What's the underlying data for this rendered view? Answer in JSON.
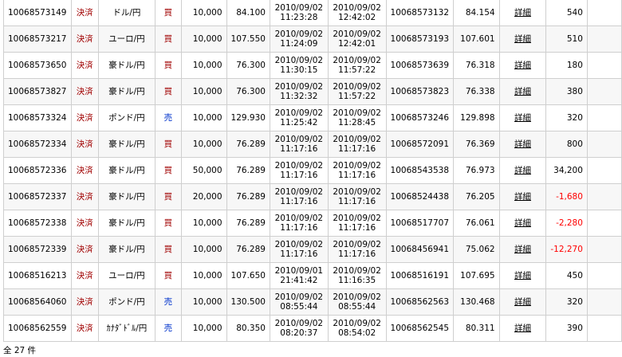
{
  "colors": {
    "settle": "#a00000",
    "buy": "#a00000",
    "sell": "#0033cc",
    "negative": "#ff0000"
  },
  "rows": [
    [
      "10068573149",
      "決済",
      "ドル/円",
      "買",
      "10,000",
      "84.100",
      "2010/09/02",
      "11:23:28",
      "2010/09/02",
      "12:42:02",
      "10068573132",
      "84.154",
      "詳細",
      "540"
    ],
    [
      "10068573217",
      "決済",
      "ユーロ/円",
      "買",
      "10,000",
      "107.550",
      "2010/09/02",
      "11:24:09",
      "2010/09/02",
      "12:42:01",
      "10068573193",
      "107.601",
      "詳細",
      "510"
    ],
    [
      "10068573650",
      "決済",
      "豪ドル/円",
      "買",
      "10,000",
      "76.300",
      "2010/09/02",
      "11:30:15",
      "2010/09/02",
      "11:57:22",
      "10068573639",
      "76.318",
      "詳細",
      "180"
    ],
    [
      "10068573827",
      "決済",
      "豪ドル/円",
      "買",
      "10,000",
      "76.300",
      "2010/09/02",
      "11:32:32",
      "2010/09/02",
      "11:57:22",
      "10068573823",
      "76.338",
      "詳細",
      "380"
    ],
    [
      "10068573324",
      "決済",
      "ポンド/円",
      "売",
      "10,000",
      "129.930",
      "2010/09/02",
      "11:25:42",
      "2010/09/02",
      "11:28:45",
      "10068573246",
      "129.898",
      "詳細",
      "320"
    ],
    [
      "10068572334",
      "決済",
      "豪ドル/円",
      "買",
      "10,000",
      "76.289",
      "2010/09/02",
      "11:17:16",
      "2010/09/02",
      "11:17:16",
      "10068572091",
      "76.369",
      "詳細",
      "800"
    ],
    [
      "10068572336",
      "決済",
      "豪ドル/円",
      "買",
      "50,000",
      "76.289",
      "2010/09/02",
      "11:17:16",
      "2010/09/02",
      "11:17:16",
      "10068543538",
      "76.973",
      "詳細",
      "34,200"
    ],
    [
      "10068572337",
      "決済",
      "豪ドル/円",
      "買",
      "20,000",
      "76.289",
      "2010/09/02",
      "11:17:16",
      "2010/09/02",
      "11:17:16",
      "10068524438",
      "76.205",
      "詳細",
      "-1,680"
    ],
    [
      "10068572338",
      "決済",
      "豪ドル/円",
      "買",
      "10,000",
      "76.289",
      "2010/09/02",
      "11:17:16",
      "2010/09/02",
      "11:17:16",
      "10068517707",
      "76.061",
      "詳細",
      "-2,280"
    ],
    [
      "10068572339",
      "決済",
      "豪ドル/円",
      "買",
      "10,000",
      "76.289",
      "2010/09/02",
      "11:17:16",
      "2010/09/02",
      "11:17:16",
      "10068456941",
      "75.062",
      "詳細",
      "-12,270"
    ],
    [
      "10068516213",
      "決済",
      "ユーロ/円",
      "買",
      "10,000",
      "107.650",
      "2010/09/01",
      "21:41:42",
      "2010/09/02",
      "11:16:35",
      "10068516191",
      "107.695",
      "詳細",
      "450"
    ],
    [
      "10068564060",
      "決済",
      "ポンド/円",
      "売",
      "10,000",
      "130.500",
      "2010/09/02",
      "08:55:44",
      "2010/09/02",
      "08:55:44",
      "10068562563",
      "130.468",
      "詳細",
      "320"
    ],
    [
      "10068562559",
      "決済",
      "ｶﾅﾀﾞﾄﾞﾙ/円",
      "売",
      "10,000",
      "80.350",
      "2010/09/02",
      "08:20:37",
      "2010/09/02",
      "08:54:02",
      "10068562545",
      "80.311",
      "詳細",
      "390"
    ]
  ],
  "footer": "全 27 件"
}
